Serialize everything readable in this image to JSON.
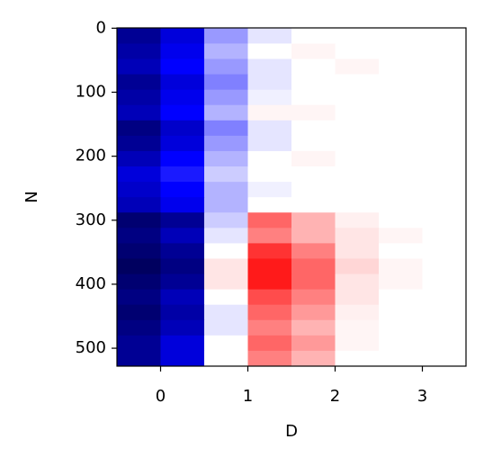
{
  "chart_data": {
    "type": "heatmap",
    "xlabel": "D",
    "ylabel": "N",
    "colormap": "seismic",
    "clim": [
      -1,
      1
    ],
    "xbins": [
      -0.5,
      0,
      0.5,
      1,
      1.5,
      2,
      2.5,
      3,
      3.5
    ],
    "ybins": [
      0,
      24,
      48,
      72,
      96,
      120,
      144,
      168,
      192,
      216,
      240,
      264,
      288,
      312,
      336,
      360,
      384,
      408,
      432,
      456,
      480,
      504,
      528
    ],
    "values": [
      [
        -0.8,
        -0.6,
        -0.2,
        -0.05,
        0,
        0,
        0,
        0
      ],
      [
        -0.75,
        -0.55,
        -0.15,
        0,
        0.02,
        0,
        0,
        0
      ],
      [
        -0.7,
        -0.5,
        -0.2,
        -0.05,
        0,
        0.02,
        0,
        0
      ],
      [
        -0.8,
        -0.6,
        -0.25,
        -0.05,
        0,
        0,
        0,
        0
      ],
      [
        -0.75,
        -0.55,
        -0.2,
        -0.03,
        0,
        0,
        0,
        0
      ],
      [
        -0.7,
        -0.5,
        -0.15,
        0.02,
        0.02,
        0,
        0,
        0
      ],
      [
        -0.85,
        -0.65,
        -0.25,
        -0.05,
        0,
        0,
        0,
        0
      ],
      [
        -0.8,
        -0.6,
        -0.2,
        -0.05,
        0,
        0,
        0,
        0
      ],
      [
        -0.7,
        -0.5,
        -0.15,
        0,
        0.02,
        0,
        0,
        0
      ],
      [
        -0.6,
        -0.45,
        -0.1,
        0,
        0,
        0,
        0,
        0
      ],
      [
        -0.65,
        -0.5,
        -0.15,
        -0.03,
        0,
        0,
        0,
        0
      ],
      [
        -0.7,
        -0.55,
        -0.15,
        0,
        0,
        0,
        0,
        0
      ],
      [
        -0.9,
        -0.8,
        -0.1,
        0.3,
        0.15,
        0.03,
        0,
        0
      ],
      [
        -0.85,
        -0.7,
        -0.05,
        0.25,
        0.15,
        0.05,
        0.02,
        0
      ],
      [
        -0.9,
        -0.8,
        0,
        0.4,
        0.25,
        0.05,
        0,
        0
      ],
      [
        -0.95,
        -0.85,
        0.05,
        0.45,
        0.3,
        0.08,
        0.02,
        0
      ],
      [
        -0.9,
        -0.8,
        0.05,
        0.45,
        0.3,
        0.05,
        0.02,
        0
      ],
      [
        -0.85,
        -0.7,
        0,
        0.35,
        0.25,
        0.05,
        0,
        0
      ],
      [
        -0.9,
        -0.75,
        -0.05,
        0.3,
        0.2,
        0.03,
        0,
        0
      ],
      [
        -0.85,
        -0.7,
        -0.05,
        0.25,
        0.15,
        0.02,
        0,
        0
      ],
      [
        -0.8,
        -0.6,
        0,
        0.3,
        0.2,
        0.02,
        0,
        0
      ],
      [
        -0.8,
        -0.6,
        0,
        0.25,
        0.15,
        0,
        0,
        0
      ]
    ],
    "xlim": [
      -0.5,
      3.5
    ],
    "ylim": [
      528,
      -0.5
    ],
    "xticks": [
      0,
      1,
      2,
      3
    ],
    "yticks": [
      0,
      100,
      200,
      300,
      400,
      500
    ]
  }
}
